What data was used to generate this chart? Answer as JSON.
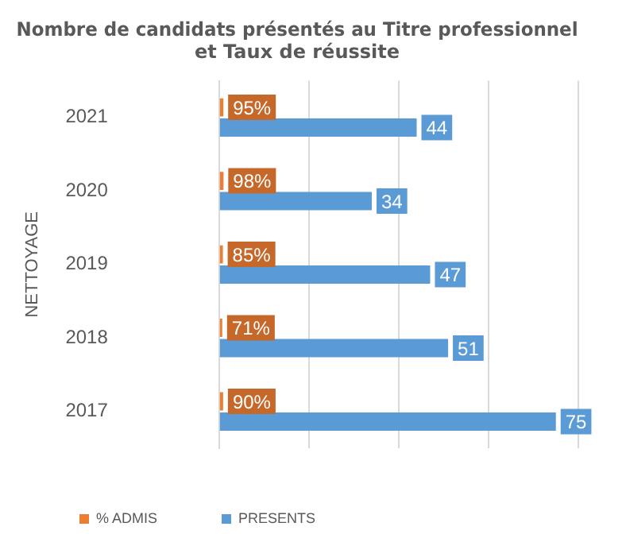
{
  "chart_data": {
    "type": "bar",
    "orientation": "horizontal",
    "title": [
      "Nombre de candidats présentés au Titre professionnel",
      "et Taux de réussite"
    ],
    "ylabel": "NETTOYAGE",
    "categories": [
      "2021",
      "2020",
      "2019",
      "2018",
      "2017"
    ],
    "series": [
      {
        "name": "% ADMIS",
        "color": "#ed7d31",
        "values": [
          0.95,
          0.98,
          0.85,
          0.71,
          0.9
        ],
        "value_labels": [
          "95%",
          "98%",
          "85%",
          "71%",
          "90%"
        ]
      },
      {
        "name": "PRESENTS",
        "color": "#5b9bd5",
        "values": [
          44,
          34,
          47,
          51,
          75
        ],
        "value_labels": [
          "44",
          "34",
          "47",
          "51",
          "75"
        ]
      }
    ],
    "xlim": [
      0,
      80
    ],
    "xticks": [
      {
        "value": 0,
        "label": null
      },
      {
        "value": 20,
        "label": null
      },
      {
        "value": 40,
        "label": null
      },
      {
        "value": 60,
        "label": null
      },
      {
        "value": 80,
        "label": null
      }
    ],
    "grid": "x",
    "tick_labels": "y",
    "legend": "bottom left"
  }
}
